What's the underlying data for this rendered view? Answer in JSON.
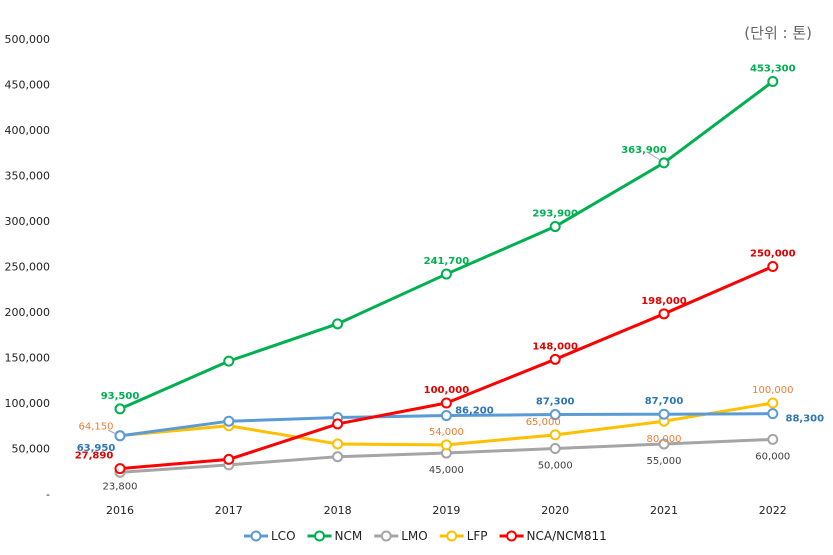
{
  "chart_data": {
    "type": "line",
    "title": "",
    "unit_label": "(단위 : 톤)",
    "xlabel": "",
    "ylabel": "",
    "ylim": [
      0,
      500000
    ],
    "y_tick_labels": [
      "-",
      "50,000",
      "100,000",
      "150,000",
      "200,000",
      "250,000",
      "300,000",
      "350,000",
      "400,000",
      "450,000",
      "500,000"
    ],
    "categories": [
      "2016",
      "2017",
      "2018",
      "2019",
      "2020",
      "2021",
      "2022"
    ],
    "legend_position": "bottom",
    "series": [
      {
        "name": "LCO",
        "color": "#5B9BD5",
        "label_color": "#2E75B6",
        "values": [
          63950,
          80000,
          84000,
          86200,
          87300,
          87700,
          88300
        ],
        "labels": [
          "63,950",
          "",
          "",
          "86,200",
          "87,300",
          "87,700",
          "88,300"
        ]
      },
      {
        "name": "NCM",
        "color": "#00B050",
        "label_color": "#00B050",
        "values": [
          93500,
          146000,
          187000,
          241700,
          293900,
          363900,
          453300
        ],
        "labels": [
          "93,500",
          "",
          "",
          "241,700",
          "293,900",
          "363,900",
          "453,300"
        ]
      },
      {
        "name": "LMO",
        "color": "#A5A5A5",
        "label_color": "#404040",
        "values": [
          23800,
          32000,
          41000,
          45000,
          50000,
          55000,
          60000
        ],
        "labels": [
          "23,800",
          "",
          "",
          "45,000",
          "50,000",
          "55,000",
          "60,000"
        ]
      },
      {
        "name": "LFP",
        "color": "#FFC000",
        "label_color": "#ED7D31",
        "values": [
          64150,
          75000,
          55000,
          54000,
          65000,
          80000,
          100000
        ],
        "labels": [
          "64,150",
          "",
          "",
          "54,000",
          "65,000",
          "80,000",
          "100,000"
        ]
      },
      {
        "name": "NCA/NCM811",
        "color": "#FF0000",
        "label_color": "#E00000",
        "values": [
          27890,
          38000,
          77000,
          100000,
          148000,
          198000,
          250000
        ],
        "labels": [
          "27,890",
          "",
          "",
          "100,000",
          "148,000",
          "198,000",
          "250,000"
        ]
      }
    ]
  }
}
